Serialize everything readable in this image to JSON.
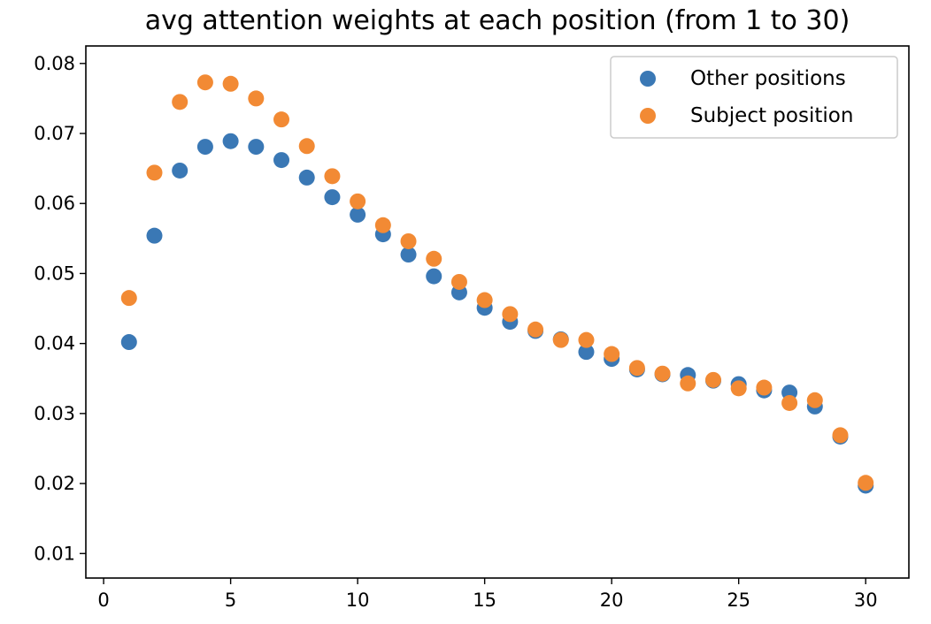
{
  "chart_data": {
    "type": "scatter",
    "title": "avg attention weights at each position (from 1 to 30)",
    "xlabel": "",
    "ylabel": "",
    "xlim": [
      -0.7,
      31.7
    ],
    "ylim": [
      0.0065,
      0.0825
    ],
    "x_ticks": [
      0,
      5,
      10,
      15,
      20,
      25,
      30
    ],
    "x_tick_labels": [
      "0",
      "5",
      "10",
      "15",
      "20",
      "25",
      "30"
    ],
    "y_ticks": [
      0.01,
      0.02,
      0.03,
      0.04,
      0.05,
      0.06,
      0.07,
      0.08
    ],
    "y_tick_labels": [
      "0.01",
      "0.02",
      "0.03",
      "0.04",
      "0.05",
      "0.06",
      "0.07",
      "0.08"
    ],
    "grid": false,
    "legend_position": "upper right",
    "x": [
      1,
      2,
      3,
      4,
      5,
      6,
      7,
      8,
      9,
      10,
      11,
      12,
      13,
      14,
      15,
      16,
      17,
      18,
      19,
      20,
      21,
      22,
      23,
      24,
      25,
      26,
      27,
      28,
      29,
      30
    ],
    "series": [
      {
        "name": "Other positions",
        "color": "#3a78b5",
        "values": [
          0.0402,
          0.0554,
          0.0647,
          0.0681,
          0.0689,
          0.0681,
          0.0662,
          0.0637,
          0.0609,
          0.0584,
          0.0556,
          0.0527,
          0.0496,
          0.0473,
          0.0451,
          0.0431,
          0.0418,
          0.0406,
          0.0388,
          0.0378,
          0.0363,
          0.0356,
          0.0355,
          0.0347,
          0.0342,
          0.0333,
          0.033,
          0.031,
          0.0267,
          0.0197
        ]
      },
      {
        "name": "Subject position",
        "color": "#f28a34",
        "values": [
          0.0465,
          0.0644,
          0.0745,
          0.0773,
          0.0771,
          0.075,
          0.072,
          0.0682,
          0.0639,
          0.0603,
          0.0569,
          0.0546,
          0.0521,
          0.0488,
          0.0462,
          0.0442,
          0.042,
          0.0405,
          0.0405,
          0.0385,
          0.0365,
          0.0357,
          0.0343,
          0.0348,
          0.0336,
          0.0337,
          0.0315,
          0.0319,
          0.0269,
          0.0201
        ]
      }
    ]
  }
}
